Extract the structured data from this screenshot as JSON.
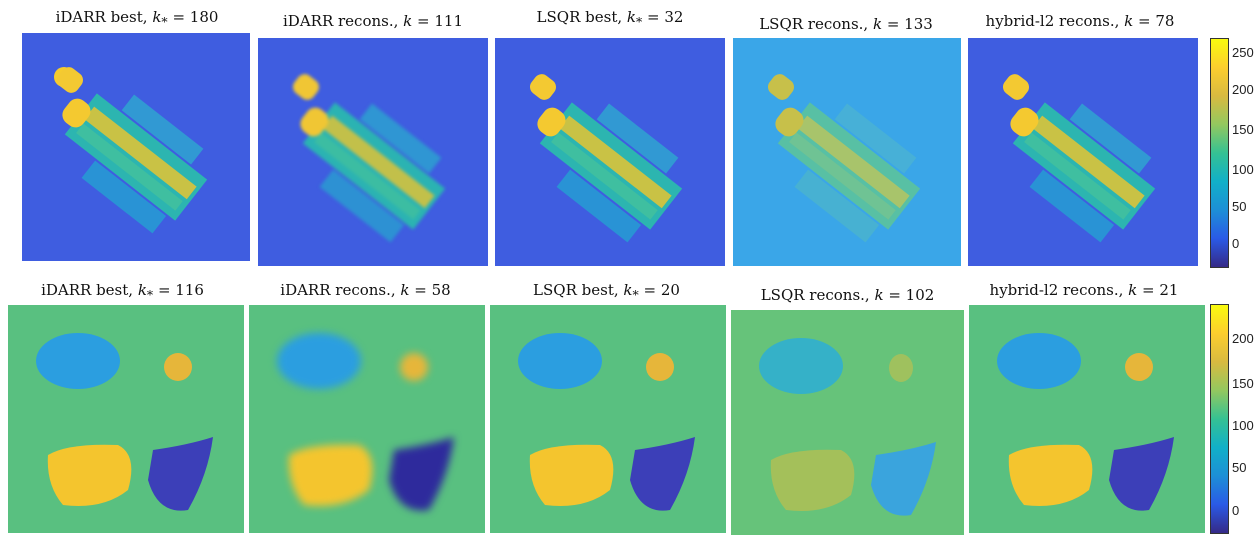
{
  "row1": {
    "titles": [
      {
        "prefix": "iDARR best, ",
        "sym": "k",
        "sub": "*",
        "eq": " = ",
        "val": "180"
      },
      {
        "prefix": "iDARR recons., ",
        "sym": "k",
        "sub": "",
        "eq": " = ",
        "val": "111"
      },
      {
        "prefix": "LSQR best, ",
        "sym": "k",
        "sub": "*",
        "eq": " = ",
        "val": "32"
      },
      {
        "prefix": "LSQR recons., ",
        "sym": "k",
        "sub": "",
        "eq": " = ",
        "val": "133"
      },
      {
        "prefix": "hybrid-l2 recons., ",
        "sym": "k",
        "sub": "",
        "eq": " = ",
        "val": "78"
      }
    ],
    "colorbar_ticks": [
      "250",
      "200",
      "150",
      "100",
      "50",
      "0"
    ]
  },
  "row2": {
    "titles": [
      {
        "prefix": "iDARR best, ",
        "sym": "k",
        "sub": "*",
        "eq": " = ",
        "val": "116"
      },
      {
        "prefix": "iDARR recons., ",
        "sym": "k",
        "sub": "",
        "eq": " = ",
        "val": "58"
      },
      {
        "prefix": "LSQR best, ",
        "sym": "k",
        "sub": "*",
        "eq": " = ",
        "val": "20"
      },
      {
        "prefix": "LSQR recons., ",
        "sym": "k",
        "sub": "",
        "eq": " = ",
        "val": "102"
      },
      {
        "prefix": "hybrid-l2 recons., ",
        "sym": "k",
        "sub": "",
        "eq": " = ",
        "val": "21"
      }
    ],
    "colorbar_ticks": [
      "200",
      "150",
      "100",
      "50",
      "0"
    ]
  },
  "colors": {
    "parula": [
      "#352a87",
      "#2a5ae6",
      "#1d8fd6",
      "#11b0c8",
      "#35c193",
      "#93c85f",
      "#d8ba40",
      "#fcce2e",
      "#f9fb0e"
    ],
    "bg_dark": "#3f5de0",
    "bg_noisy": "#3aa6e8",
    "bg_mid": "#59c080"
  }
}
